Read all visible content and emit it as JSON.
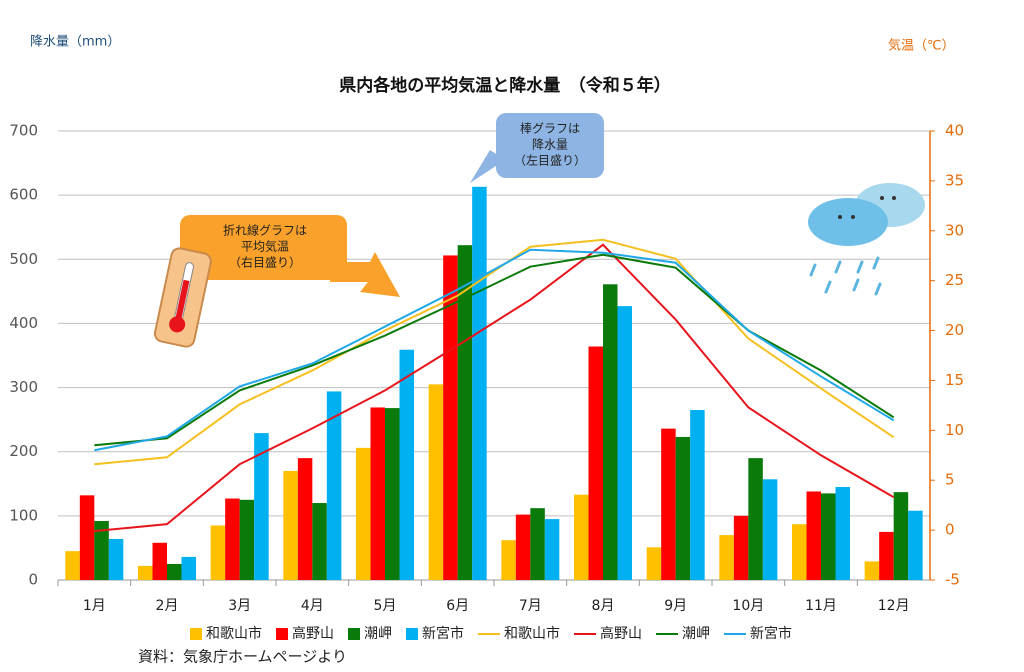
{
  "chart_data": {
    "type": "combo",
    "title": "県内各地の平均気温と降水量　（令和５年）",
    "y_label": "降水量（mm）",
    "y2_label": "気温（℃）",
    "source": "資料：気象庁ホームページより",
    "categories": [
      "1月",
      "2月",
      "3月",
      "4月",
      "5月",
      "6月",
      "7月",
      "8月",
      "9月",
      "10月",
      "11月",
      "12月"
    ],
    "series": [
      {
        "name": "和歌山市",
        "type": "bar",
        "color": "#ffc000",
        "values": [
          45,
          22,
          85,
          170,
          206,
          305,
          62,
          133,
          51,
          70,
          87,
          29
        ]
      },
      {
        "name": "高野山",
        "type": "bar",
        "color": "#ff0000",
        "values": [
          132,
          58,
          127,
          190,
          269,
          506,
          102,
          364,
          236,
          100,
          138,
          75
        ]
      },
      {
        "name": "潮岬",
        "type": "bar",
        "color": "#0a7a0a",
        "values": [
          92,
          25,
          125,
          120,
          268,
          522,
          112,
          461,
          223,
          190,
          135,
          137
        ]
      },
      {
        "name": "新宮市",
        "type": "bar",
        "color": "#00b0f0",
        "values": [
          64,
          36,
          229,
          294,
          359,
          613,
          95,
          427,
          265,
          157,
          145,
          108
        ]
      },
      {
        "name": "和歌山市",
        "type": "line",
        "axis": "y2",
        "color": "#f5c01f",
        "values": [
          6.6,
          7.3,
          12.6,
          16.0,
          20.0,
          23.5,
          28.4,
          29.1,
          27.2,
          19.2,
          14.2,
          9.3
        ]
      },
      {
        "name": "高野山",
        "type": "line",
        "axis": "y2",
        "color": "#e8141c",
        "values": [
          -0.1,
          0.6,
          6.6,
          10.2,
          14.0,
          18.5,
          23.1,
          28.6,
          21.1,
          12.3,
          7.5,
          3.3
        ]
      },
      {
        "name": "潮岬",
        "type": "line",
        "axis": "y2",
        "color": "#0a7a0a",
        "values": [
          8.5,
          9.2,
          14.0,
          16.5,
          19.5,
          22.9,
          26.4,
          27.6,
          26.3,
          20.0,
          16.0,
          11.3
        ]
      },
      {
        "name": "新宮市",
        "type": "line",
        "axis": "y2",
        "color": "#1fa8e8",
        "values": [
          8.0,
          9.4,
          14.4,
          16.7,
          20.4,
          24.1,
          28.1,
          27.8,
          26.8,
          20.0,
          15.4,
          11.0
        ]
      }
    ],
    "ylim": [
      0,
      700
    ],
    "yticks": [
      0,
      100,
      200,
      300,
      400,
      500,
      600,
      700
    ],
    "y2lim": [
      -5,
      40
    ],
    "y2ticks": [
      -5,
      0,
      5,
      10,
      15,
      20,
      25,
      30,
      35,
      40
    ],
    "grid": true,
    "annotations": [
      {
        "lines": [
          "棒グラフは",
          "降水量",
          "（左目盛り）"
        ]
      },
      {
        "lines": [
          "折れ線グラフは",
          "平均気温",
          "（右目盛り）"
        ]
      }
    ]
  }
}
